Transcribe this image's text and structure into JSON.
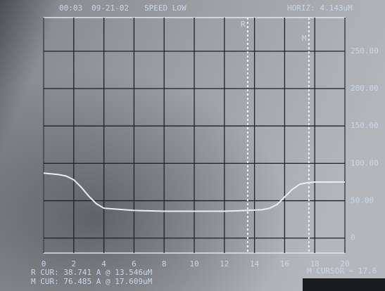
{
  "chart_data": {
    "type": "line",
    "header": [
      "00:03",
      "09-21-02",
      "SPEED LOW",
      "HORIZ: 4.143uM"
    ],
    "x": [
      0,
      1,
      1.5,
      2,
      2.5,
      3,
      3.5,
      4,
      6,
      8,
      10,
      12,
      13.5,
      14.5,
      15,
      15.5,
      16,
      16.5,
      17,
      17.5,
      18,
      20
    ],
    "series": [
      {
        "color": "#e8eef4",
        "values": [
          87,
          85,
          83,
          78,
          68,
          56,
          46,
          40,
          37,
          36,
          36,
          36,
          37,
          38,
          40,
          45,
          55,
          65,
          72,
          74,
          75,
          75
        ]
      }
    ],
    "xlim": [
      0,
      20
    ],
    "xticks": [
      0,
      2,
      4,
      6,
      8,
      10,
      12,
      14,
      16,
      18,
      20
    ],
    "ylim": [
      -20,
      295
    ],
    "yticks": [
      0,
      {
        "value": 50,
        "label": "50.00"
      },
      {
        "value": 100,
        "label": "100.00"
      },
      {
        "value": 150,
        "label": "150.00"
      },
      {
        "value": 200,
        "label": "200.00"
      },
      {
        "value": 250,
        "label": "250.00"
      }
    ],
    "grid": true,
    "cursors": [
      {
        "label": "R",
        "x": 13.546
      },
      {
        "label": "M",
        "x": 17.609
      }
    ],
    "readouts": [
      "R CUR: 38.741 A @ 13.546uM",
      "M CUR: 76.485 A @ 17.609uM"
    ],
    "cursor_readout": "M CURSOR = 17.6"
  }
}
